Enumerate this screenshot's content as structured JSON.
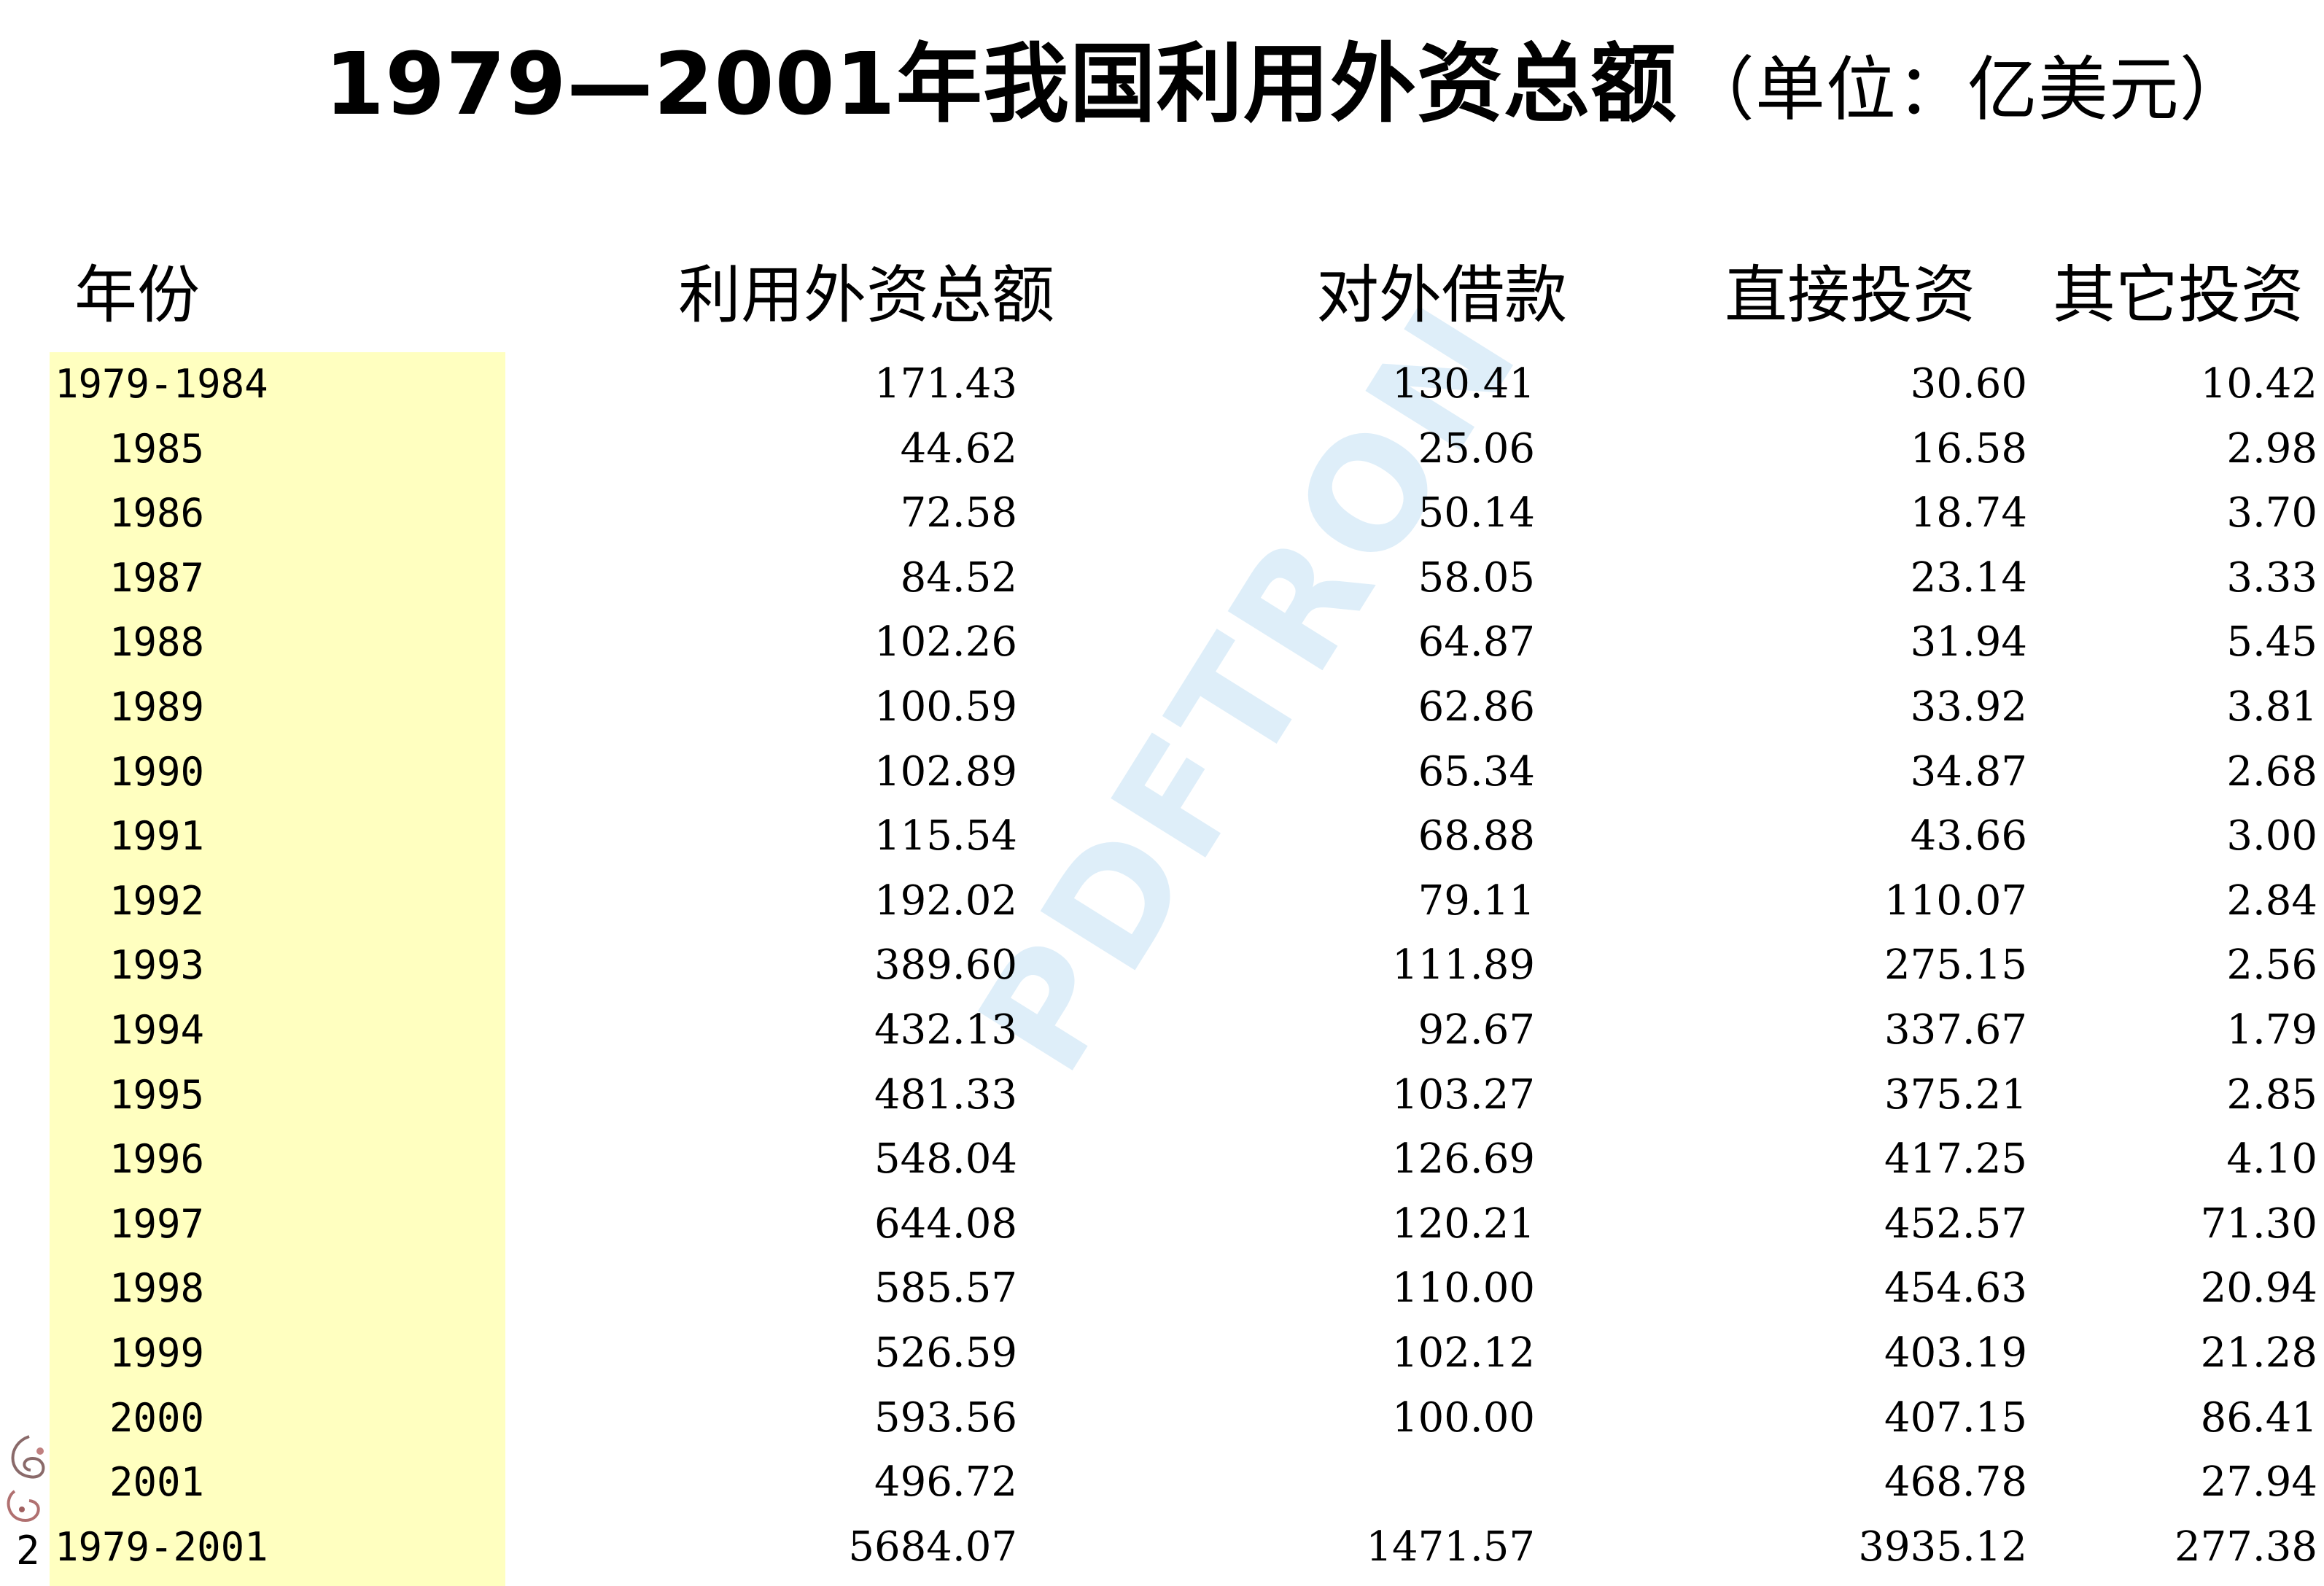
{
  "title": {
    "main": "1979—2001年我国利用外资总额",
    "unit": "（单位：亿美元）"
  },
  "watermark": "PDFTRON",
  "corner_label": "2",
  "table": {
    "headers": [
      "年份",
      "利用外资总额",
      "对外借款",
      "直接投资",
      "其它投资"
    ],
    "rows": [
      {
        "year": "1979-1984",
        "total": "171.43",
        "loan": "130.41",
        "direct": "30.60",
        "other": "10.42"
      },
      {
        "year": "1985",
        "total": "44.62",
        "loan": "25.06",
        "direct": "16.58",
        "other": "2.98"
      },
      {
        "year": "1986",
        "total": "72.58",
        "loan": "50.14",
        "direct": "18.74",
        "other": "3.70"
      },
      {
        "year": "1987",
        "total": "84.52",
        "loan": "58.05",
        "direct": "23.14",
        "other": "3.33"
      },
      {
        "year": "1988",
        "total": "102.26",
        "loan": "64.87",
        "direct": "31.94",
        "other": "5.45"
      },
      {
        "year": "1989",
        "total": "100.59",
        "loan": "62.86",
        "direct": "33.92",
        "other": "3.81"
      },
      {
        "year": "1990",
        "total": "102.89",
        "loan": "65.34",
        "direct": "34.87",
        "other": "2.68"
      },
      {
        "year": "1991",
        "total": "115.54",
        "loan": "68.88",
        "direct": "43.66",
        "other": "3.00"
      },
      {
        "year": "1992",
        "total": "192.02",
        "loan": "79.11",
        "direct": "110.07",
        "other": "2.84"
      },
      {
        "year": "1993",
        "total": "389.60",
        "loan": "111.89",
        "direct": "275.15",
        "other": "2.56"
      },
      {
        "year": "1994",
        "total": "432.13",
        "loan": "92.67",
        "direct": "337.67",
        "other": "1.79"
      },
      {
        "year": "1995",
        "total": "481.33",
        "loan": "103.27",
        "direct": "375.21",
        "other": "2.85"
      },
      {
        "year": "1996",
        "total": "548.04",
        "loan": "126.69",
        "direct": "417.25",
        "other": "4.10"
      },
      {
        "year": "1997",
        "total": "644.08",
        "loan": "120.21",
        "direct": "452.57",
        "other": "71.30"
      },
      {
        "year": "1998",
        "total": "585.57",
        "loan": "110.00",
        "direct": "454.63",
        "other": "20.94"
      },
      {
        "year": "1999",
        "total": "526.59",
        "loan": "102.12",
        "direct": "403.19",
        "other": "21.28"
      },
      {
        "year": "2000",
        "total": "593.56",
        "loan": "100.00",
        "direct": "407.15",
        "other": "86.41"
      },
      {
        "year": "2001",
        "total": "496.72",
        "loan": "",
        "direct": "468.78",
        "other": "27.94"
      },
      {
        "year": "1979-2001",
        "total": "5684.07",
        "loan": "1471.57",
        "direct": "3935.12",
        "other": "277.38"
      }
    ]
  },
  "colors": {
    "year_band": "#ffffc0",
    "watermark": "#d9ecf8",
    "text": "#000000"
  }
}
